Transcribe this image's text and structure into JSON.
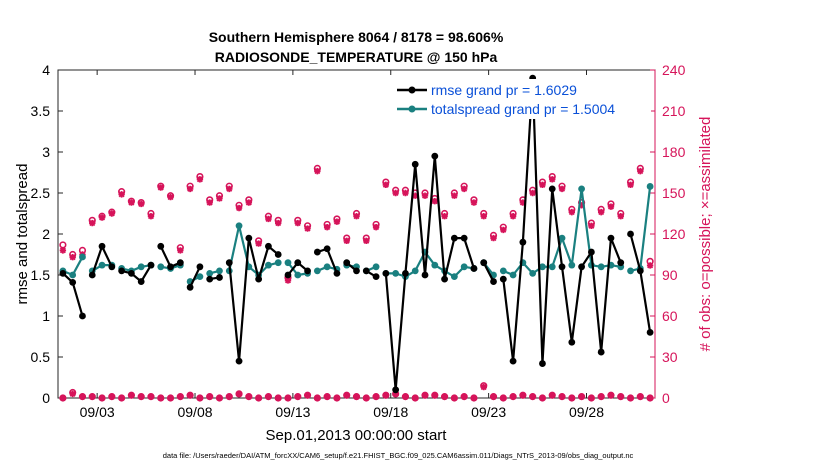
{
  "chart_data": {
    "type": "line",
    "title_line1": "Southern Hemisphere 8064 / 8178 = 98.606%",
    "title_line2": "RADIOSONDE_TEMPERATURE @ 150 hPa",
    "xlabel": "Sep.01,2013 00:00:00 start",
    "ylabel_left": "rmse and totalspread",
    "ylabel_right": "# of obs: o=possible; ×=assimilated",
    "footer": "data file: /Users/raeder/DAI/ATM_forcXX/CAM6_setup/f.e21.FHIST_BGC.f09_025.CAM6assim.011/Diags_NTrS_2013-09/obs_diag_output.nc",
    "xlim": [
      0,
      30.5
    ],
    "ylim_left": [
      0,
      4
    ],
    "ylim_right": [
      0,
      240
    ],
    "x_ticks": [
      2,
      7,
      12,
      17,
      22,
      27
    ],
    "x_tick_labels": [
      "09/03",
      "09/08",
      "09/13",
      "09/18",
      "09/23",
      "09/28"
    ],
    "y_left_ticks": [
      0,
      0.5,
      1,
      1.5,
      2,
      2.5,
      3,
      3.5,
      4
    ],
    "y_left_tick_labels": [
      "0",
      "0.5",
      "1",
      "1.5",
      "2",
      "2.5",
      "3",
      "3.5",
      "4"
    ],
    "y_right_ticks": [
      0,
      30,
      60,
      90,
      120,
      150,
      180,
      210,
      240
    ],
    "y_right_tick_labels": [
      "0",
      "30",
      "60",
      "90",
      "120",
      "150",
      "180",
      "210",
      "240"
    ],
    "legend": [
      {
        "name": "rmse grand pr = 1.6029",
        "color": "#000000"
      },
      {
        "name": "totalspread grand pr = 1.5004",
        "color": "#1a8080"
      }
    ],
    "colors": {
      "rmse": "#000000",
      "spread": "#1a8080",
      "obs": "#d6145a"
    },
    "times": [
      0.25,
      0.75,
      1.25,
      1.75,
      2.25,
      2.75,
      3.25,
      3.75,
      4.25,
      4.75,
      5.25,
      5.75,
      6.25,
      6.75,
      7.25,
      7.75,
      8.25,
      8.75,
      9.25,
      9.75,
      10.25,
      10.75,
      11.25,
      11.75,
      12.25,
      12.75,
      13.25,
      13.75,
      14.25,
      14.75,
      15.25,
      15.75,
      16.25,
      16.75,
      17.25,
      17.75,
      18.25,
      18.75,
      19.25,
      19.75,
      20.25,
      20.75,
      21.25,
      21.75,
      22.25,
      22.75,
      23.25,
      23.75,
      24.25,
      24.75,
      25.25,
      25.75,
      26.25,
      26.75,
      27.25,
      27.75,
      28.25,
      28.75,
      29.25,
      29.75,
      30.25
    ],
    "rmse": [
      1.52,
      1.41,
      1.0,
      1.5,
      1.85,
      1.6,
      1.55,
      1.52,
      1.42,
      1.62,
      1.85,
      1.6,
      1.65,
      1.35,
      1.6,
      1.45,
      1.47,
      1.65,
      0.45,
      1.95,
      1.45,
      1.85,
      1.75,
      1.5,
      1.65,
      1.55,
      1.78,
      1.82,
      1.52,
      1.65,
      1.55,
      1.55,
      1.48,
      1.52,
      0.1,
      1.52,
      2.85,
      1.5,
      2.95,
      1.45,
      1.95,
      1.95,
      1.58,
      1.65,
      1.42,
      1.45,
      0.45,
      1.9,
      3.9,
      0.42,
      2.55,
      1.6,
      0.68,
      1.6,
      1.78,
      0.56,
      1.95,
      1.65,
      2.0,
      1.55,
      0.8
    ],
    "spread": [
      1.55,
      1.5,
      1.72,
      1.55,
      1.62,
      1.62,
      1.58,
      1.55,
      1.6,
      1.62,
      1.6,
      1.58,
      1.62,
      1.42,
      1.48,
      1.52,
      1.55,
      1.55,
      2.1,
      1.6,
      1.5,
      1.62,
      1.65,
      1.65,
      1.5,
      1.52,
      1.55,
      1.6,
      1.57,
      1.62,
      1.6,
      1.55,
      1.6,
      1.52,
      1.52,
      1.48,
      1.55,
      1.78,
      1.62,
      1.55,
      1.48,
      1.6,
      1.58,
      1.65,
      1.5,
      1.55,
      1.5,
      1.65,
      1.52,
      1.6,
      1.6,
      1.95,
      1.62,
      2.55,
      1.62,
      1.6,
      1.62,
      1.6,
      1.55,
      1.58,
      2.58
    ],
    "possible": [
      112,
      105,
      108,
      130,
      133,
      136,
      151,
      144,
      143,
      135,
      155,
      148,
      110,
      155,
      162,
      145,
      148,
      155,
      141,
      145,
      115,
      133,
      130,
      88,
      130,
      126,
      168,
      127,
      131,
      117,
      135,
      117,
      127,
      158,
      152,
      152,
      150,
      150,
      146,
      135,
      150,
      155,
      145,
      135,
      119,
      125,
      135,
      145,
      152,
      158,
      162,
      155,
      138,
      143,
      128,
      138,
      142,
      135,
      158,
      168,
      100
    ],
    "assimilated": [
      108,
      103,
      105,
      128,
      132,
      135,
      149,
      143,
      142,
      133,
      154,
      147,
      108,
      153,
      160,
      143,
      146,
      153,
      139,
      143,
      113,
      131,
      128,
      86,
      128,
      124,
      166,
      125,
      129,
      115,
      133,
      115,
      125,
      156,
      150,
      150,
      148,
      148,
      144,
      133,
      148,
      153,
      143,
      133,
      117,
      123,
      133,
      143,
      150,
      156,
      160,
      153,
      136,
      141,
      126,
      136,
      140,
      133,
      156,
      166,
      97
    ],
    "possible_bottom": [
      0,
      4,
      1,
      1,
      0,
      1,
      0,
      2,
      1,
      1,
      0,
      0,
      1,
      2,
      0,
      1,
      0,
      1,
      3,
      1,
      0,
      1,
      0,
      0,
      1,
      2,
      0,
      1,
      0,
      2,
      1,
      0,
      1,
      2,
      3,
      1,
      0,
      2,
      2,
      1,
      0,
      1,
      0,
      9,
      1,
      0,
      1,
      2,
      1,
      0,
      2,
      1,
      0,
      1,
      0,
      1,
      2,
      1,
      0,
      1,
      0
    ],
    "assimilated_bottom": [
      0,
      3,
      1,
      1,
      0,
      1,
      0,
      2,
      1,
      1,
      0,
      0,
      1,
      2,
      0,
      1,
      0,
      1,
      3,
      1,
      0,
      1,
      0,
      0,
      1,
      2,
      0,
      1,
      0,
      2,
      1,
      0,
      1,
      2,
      3,
      1,
      0,
      2,
      2,
      1,
      0,
      1,
      0,
      8,
      1,
      0,
      1,
      2,
      1,
      0,
      2,
      1,
      0,
      1,
      0,
      1,
      2,
      1,
      0,
      1,
      0
    ]
  }
}
